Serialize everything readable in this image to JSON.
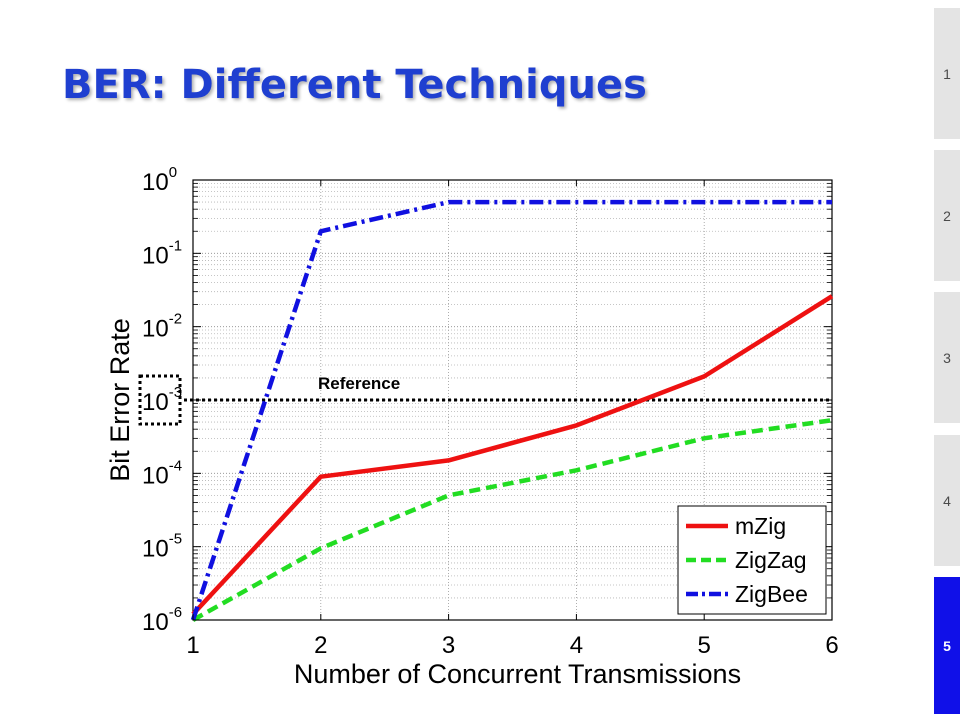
{
  "slide": {
    "title": "BER: Different Techniques",
    "nav": [
      {
        "label": "1",
        "active": false
      },
      {
        "label": "2",
        "active": false
      },
      {
        "label": "3",
        "active": false
      },
      {
        "label": "4",
        "active": false
      },
      {
        "label": "5",
        "active": true
      }
    ],
    "colors": {
      "title": "#1f3fd0",
      "nav_active": "#1010e8",
      "nav_inactive": "#e4e4e4"
    }
  },
  "chart_data": {
    "type": "line",
    "title": "",
    "xlabel": "Number of Concurrent Transmissions",
    "ylabel": "Bit Error Rate",
    "xlim": [
      1,
      6
    ],
    "ylim": [
      1e-06,
      1
    ],
    "yscale": "log",
    "xticks": [
      1,
      2,
      3,
      4,
      5,
      6
    ],
    "yticks": [
      {
        "base": "10",
        "exp": "0",
        "value": 1
      },
      {
        "base": "10",
        "exp": "-1",
        "value": 0.1
      },
      {
        "base": "10",
        "exp": "-2",
        "value": 0.01
      },
      {
        "base": "10",
        "exp": "-3",
        "value": 0.001
      },
      {
        "base": "10",
        "exp": "-4",
        "value": 0.0001
      },
      {
        "base": "10",
        "exp": "-5",
        "value": 1e-05
      },
      {
        "base": "10",
        "exp": "-6",
        "value": 1e-06
      }
    ],
    "grid": true,
    "legend_position": "bottom-right",
    "series": [
      {
        "name": "mZig",
        "color": "#ee1111",
        "dash": "solid",
        "x": [
          1,
          2,
          3,
          4,
          5,
          6
        ],
        "y": [
          1.2e-06,
          9e-05,
          0.00015,
          0.00045,
          0.0021,
          0.026
        ]
      },
      {
        "name": "ZigZag",
        "color": "#22dd22",
        "dash": "dashed",
        "x": [
          1,
          2,
          3,
          4,
          5,
          6
        ],
        "y": [
          1e-06,
          9.5e-06,
          5e-05,
          0.00011,
          0.0003,
          0.00053
        ]
      },
      {
        "name": "ZigBee",
        "color": "#1010e0",
        "dash": "dashdot",
        "x": [
          1,
          2,
          3,
          4,
          5,
          6
        ],
        "y": [
          1e-06,
          0.2,
          0.5,
          0.5,
          0.5,
          0.5
        ]
      }
    ],
    "reference_line": {
      "label": "Reference",
      "value": 0.001
    }
  }
}
